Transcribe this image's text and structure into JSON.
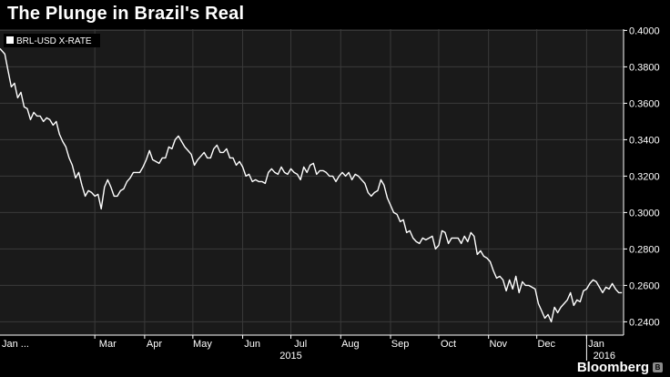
{
  "colors": {
    "background": "#000000",
    "plot_background": "#1a1a1a",
    "grid": "#3a3a3a",
    "line": "#ffffff",
    "text": "#ffffff"
  },
  "brand": {
    "name": "Bloomberg",
    "icon": "bloomberg-logo-icon"
  },
  "chart_data": {
    "type": "line",
    "title": "The Plunge in Brazil's Real",
    "legend": {
      "label": "BRL-USD X-RATE",
      "placement": "top-left"
    },
    "xlabel": "",
    "ylabel": "",
    "ylim": [
      0.2327,
      0.4007
    ],
    "xlim": [
      0,
      388
    ],
    "grid": true,
    "y_ticks": [
      "0.4000",
      "0.3800",
      "0.3600",
      "0.3400",
      "0.3200",
      "0.3000",
      "0.2800",
      "0.2600",
      "0.2400"
    ],
    "y_tick_values": [
      0.4,
      0.38,
      0.36,
      0.34,
      0.32,
      0.3,
      0.28,
      0.26,
      0.24
    ],
    "x_tick_labels": [
      "Jan ...",
      "Mar",
      "Apr",
      "May",
      "Jun",
      "Jul",
      "Aug",
      "Sep",
      "Oct",
      "Nov",
      "Dec",
      "Jan"
    ],
    "x_tick_days": [
      4,
      67,
      96,
      126,
      157,
      187,
      218,
      249,
      279,
      310,
      340,
      371
    ],
    "month_boundary_days": [
      59,
      90,
      120,
      151,
      181,
      212,
      243,
      273,
      304,
      334,
      365
    ],
    "year_labels": [
      {
        "label": "2015",
        "day": 181
      },
      {
        "label": "2016",
        "day": 376
      }
    ],
    "year_divider_day": 365,
    "series": [
      {
        "name": "BRL-USD X-RATE",
        "x": [
          0,
          3,
          5,
          7,
          9,
          11,
          13,
          15,
          17,
          19,
          21,
          23,
          25,
          27,
          29,
          31,
          33,
          35,
          37,
          39,
          41,
          43,
          45,
          47,
          49,
          51,
          53,
          55,
          57,
          59,
          61,
          63,
          65,
          67,
          69,
          71,
          73,
          75,
          77,
          79,
          81,
          83,
          85,
          87,
          89,
          91,
          93,
          95,
          97,
          99,
          101,
          103,
          105,
          107,
          109,
          111,
          113,
          115,
          117,
          119,
          121,
          123,
          125,
          127,
          129,
          131,
          133,
          135,
          137,
          139,
          141,
          143,
          145,
          147,
          149,
          151,
          153,
          155,
          157,
          159,
          161,
          163,
          165,
          167,
          169,
          171,
          173,
          175,
          177,
          179,
          181,
          183,
          185,
          187,
          189,
          191,
          193,
          195,
          197,
          199,
          201,
          203,
          205,
          207,
          209,
          211,
          213,
          215,
          217,
          219,
          221,
          223,
          225,
          227,
          229,
          231,
          233,
          235,
          237,
          239,
          241,
          243,
          245,
          247,
          249,
          251,
          253,
          255,
          257,
          259,
          261,
          263,
          265,
          267,
          269,
          271,
          273,
          275,
          277,
          279,
          281,
          283,
          285,
          287,
          289,
          291,
          293,
          295,
          297,
          299,
          301,
          303,
          305,
          307,
          309,
          311,
          313,
          315,
          317,
          319,
          321,
          323,
          325,
          327,
          329,
          331,
          333,
          335,
          337,
          339,
          341,
          343,
          345,
          347,
          349,
          351,
          353,
          355,
          357,
          359,
          361,
          363,
          365,
          367,
          369,
          371,
          373,
          375,
          377,
          379,
          381,
          383,
          385,
          387
        ],
        "values": [
          0.39,
          0.387,
          0.378,
          0.369,
          0.371,
          0.363,
          0.366,
          0.358,
          0.357,
          0.351,
          0.355,
          0.353,
          0.353,
          0.35,
          0.352,
          0.351,
          0.348,
          0.35,
          0.343,
          0.339,
          0.336,
          0.33,
          0.326,
          0.319,
          0.322,
          0.315,
          0.309,
          0.312,
          0.311,
          0.309,
          0.31,
          0.302,
          0.314,
          0.318,
          0.314,
          0.309,
          0.309,
          0.312,
          0.313,
          0.317,
          0.319,
          0.322,
          0.322,
          0.322,
          0.325,
          0.329,
          0.334,
          0.329,
          0.328,
          0.327,
          0.33,
          0.33,
          0.336,
          0.335,
          0.34,
          0.342,
          0.339,
          0.336,
          0.334,
          0.332,
          0.326,
          0.329,
          0.331,
          0.333,
          0.33,
          0.33,
          0.335,
          0.337,
          0.333,
          0.333,
          0.335,
          0.33,
          0.33,
          0.326,
          0.328,
          0.325,
          0.32,
          0.321,
          0.317,
          0.318,
          0.317,
          0.317,
          0.316,
          0.322,
          0.324,
          0.322,
          0.321,
          0.325,
          0.322,
          0.321,
          0.324,
          0.322,
          0.321,
          0.318,
          0.325,
          0.322,
          0.326,
          0.327,
          0.321,
          0.323,
          0.323,
          0.322,
          0.32,
          0.32,
          0.317,
          0.32,
          0.322,
          0.32,
          0.322,
          0.318,
          0.321,
          0.32,
          0.318,
          0.316,
          0.311,
          0.309,
          0.311,
          0.312,
          0.318,
          0.315,
          0.308,
          0.304,
          0.3,
          0.299,
          0.295,
          0.296,
          0.289,
          0.29,
          0.286,
          0.284,
          0.283,
          0.286,
          0.285,
          0.286,
          0.287,
          0.28,
          0.282,
          0.29,
          0.289,
          0.283,
          0.286,
          0.286,
          0.286,
          0.283,
          0.287,
          0.284,
          0.289,
          0.287,
          0.277,
          0.279,
          0.276,
          0.275,
          0.273,
          0.268,
          0.264,
          0.265,
          0.263,
          0.257,
          0.263,
          0.258,
          0.265,
          0.256,
          0.262,
          0.26,
          0.26,
          0.259,
          0.258,
          0.25,
          0.246,
          0.242,
          0.244,
          0.24,
          0.248,
          0.245,
          0.248,
          0.25,
          0.252,
          0.256,
          0.249,
          0.252,
          0.251,
          0.257,
          0.258,
          0.261,
          0.263,
          0.262,
          0.259,
          0.256,
          0.259,
          0.258,
          0.261,
          0.258,
          0.256,
          0.256
        ]
      }
    ]
  }
}
